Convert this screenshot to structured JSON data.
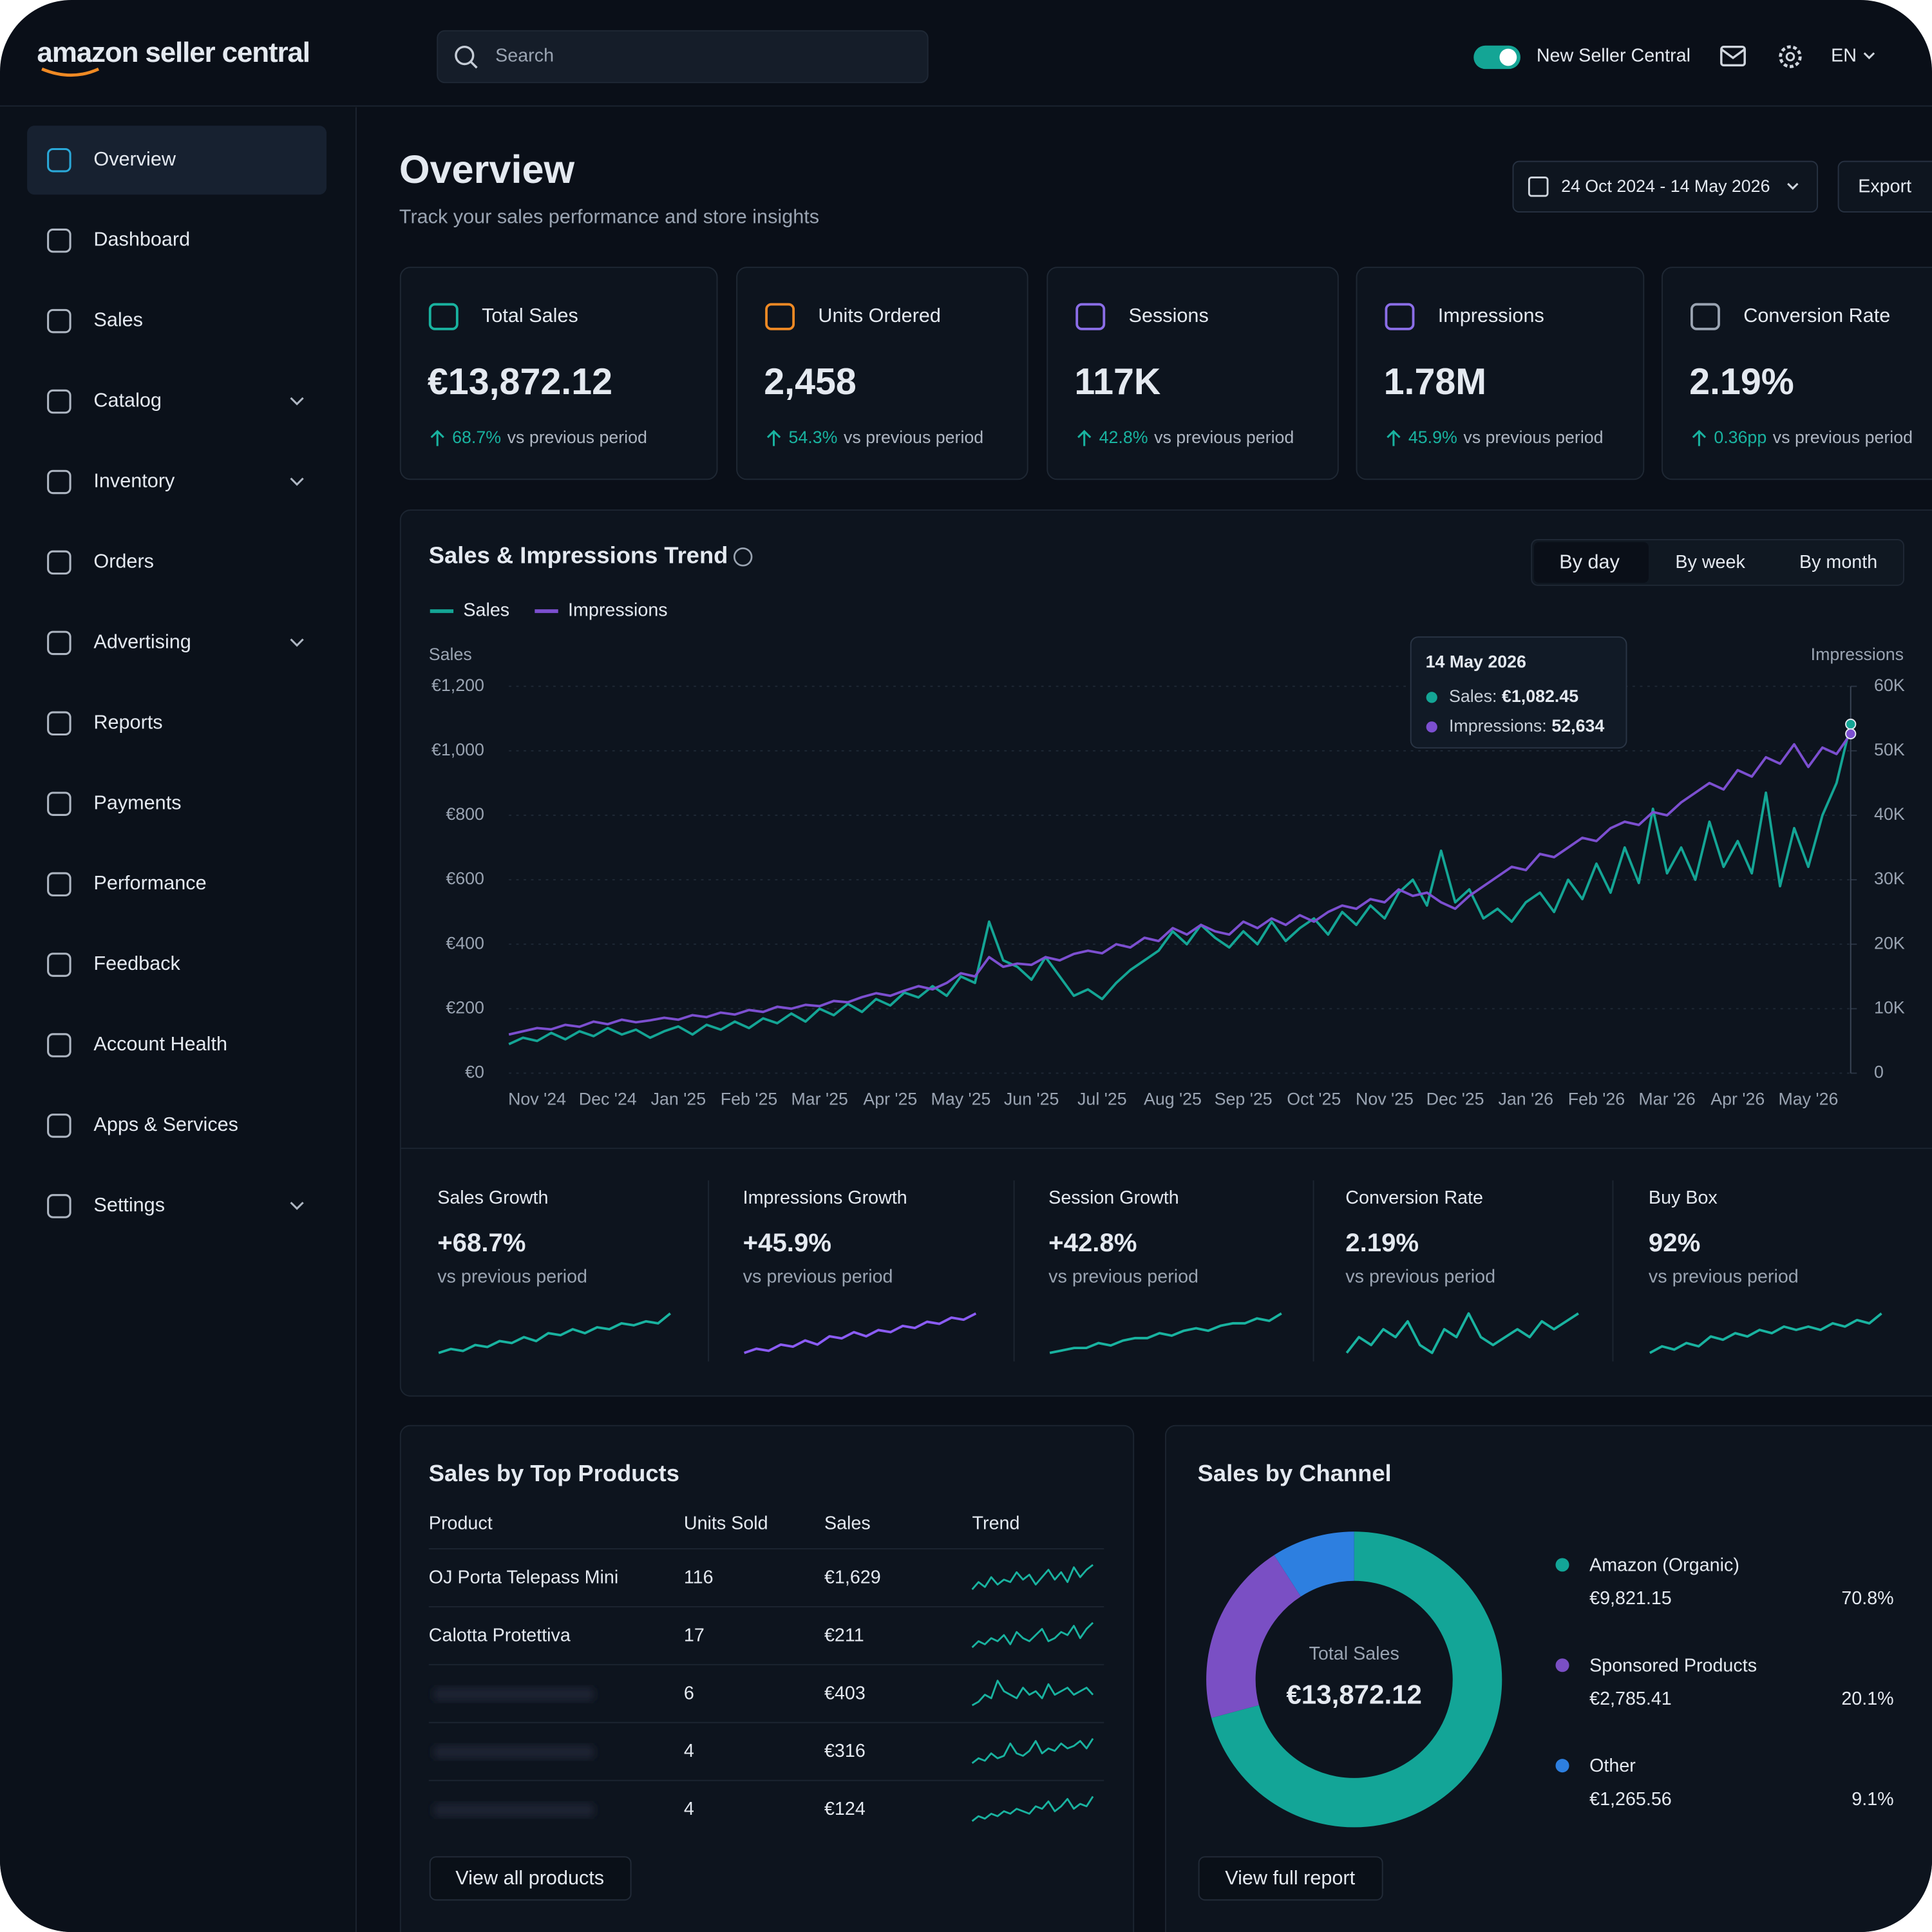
{
  "header": {
    "logo": "amazon seller central",
    "search_placeholder": "Search",
    "toggle_label": "New Seller Central",
    "language": "EN"
  },
  "nav": [
    {
      "label": "Overview",
      "active": true
    },
    {
      "label": "Dashboard"
    },
    {
      "label": "Sales"
    },
    {
      "label": "Catalog",
      "expandable": true
    },
    {
      "label": "Inventory",
      "expandable": true
    },
    {
      "label": "Orders"
    },
    {
      "label": "Advertising",
      "expandable": true
    },
    {
      "label": "Reports"
    },
    {
      "label": "Payments"
    },
    {
      "label": "Performance"
    },
    {
      "label": "Feedback"
    },
    {
      "label": "Account Health"
    },
    {
      "label": "Apps & Services"
    },
    {
      "label": "Settings",
      "expandable": true
    }
  ],
  "page": {
    "title": "Overview",
    "subtitle": "Track your sales performance and store insights",
    "date_range": "24 Oct 2024 - 14 May 2026",
    "export": "Export"
  },
  "kpis": [
    {
      "label": "Total Sales",
      "value": "€13,872.12",
      "change": "68.7%",
      "comparison": "vs previous period",
      "color": "#19b3a0"
    },
    {
      "label": "Units Ordered",
      "value": "2,458",
      "change": "54.3%",
      "comparison": "vs previous period",
      "color": "#f08a24"
    },
    {
      "label": "Sessions",
      "value": "117K",
      "change": "42.8%",
      "comparison": "vs previous period",
      "color": "#8b6ee8"
    },
    {
      "label": "Impressions",
      "value": "1.78M",
      "change": "45.9%",
      "comparison": "vs previous period",
      "color": "#8b6ee8"
    },
    {
      "label": "Conversion Rate",
      "value": "2.19%",
      "change": "0.36pp",
      "comparison": "vs previous period",
      "color": "#9aa4b2"
    }
  ],
  "chart_data": [
    {
      "type": "line",
      "title": "Sales & Impressions Trend",
      "periods": [
        "By day",
        "By week",
        "By month"
      ],
      "active_period": 0,
      "y_title": "Sales",
      "y2_title": "Impressions",
      "categories": [
        null,
        null,
        "Nov '24",
        null,
        null,
        null,
        null,
        "Dec '24",
        null,
        null,
        null,
        null,
        "Jan '25",
        null,
        null,
        null,
        null,
        "Feb '25",
        null,
        null,
        null,
        null,
        "Mar '25",
        null,
        null,
        null,
        null,
        "Apr '25",
        null,
        null,
        null,
        null,
        "May '25",
        null,
        null,
        null,
        null,
        "Jun '25",
        null,
        null,
        null,
        null,
        "Jul '25",
        null,
        null,
        null,
        null,
        "Aug '25",
        null,
        null,
        null,
        null,
        "Sep '25",
        null,
        null,
        null,
        null,
        "Oct '25",
        null,
        null,
        null,
        null,
        "Nov '25",
        null,
        null,
        null,
        null,
        "Dec '25",
        null,
        null,
        null,
        null,
        "Jan '26",
        null,
        null,
        null,
        null,
        "Feb '26",
        null,
        null,
        null,
        null,
        "Mar '26",
        null,
        null,
        null,
        null,
        "Apr '26",
        null,
        null,
        null,
        null,
        "May '26",
        null,
        null,
        null
      ],
      "series": [
        {
          "name": "Sales",
          "color": "#14a595",
          "values": [
            90,
            110,
            100,
            125,
            105,
            130,
            115,
            140,
            120,
            135,
            110,
            130,
            145,
            120,
            150,
            135,
            160,
            140,
            170,
            155,
            185,
            160,
            200,
            180,
            215,
            190,
            230,
            210,
            250,
            235,
            270,
            240,
            300,
            280,
            470,
            350,
            330,
            290,
            360,
            300,
            240,
            260,
            230,
            280,
            320,
            350,
            380,
            440,
            400,
            460,
            420,
            390,
            440,
            400,
            470,
            410,
            450,
            480,
            430,
            500,
            460,
            520,
            480,
            560,
            600,
            520,
            690,
            530,
            570,
            480,
            510,
            470,
            530,
            560,
            500,
            600,
            540,
            650,
            560,
            700,
            590,
            820,
            620,
            700,
            600,
            780,
            640,
            720,
            620,
            870,
            580,
            760,
            640,
            800,
            900,
            1082.45
          ]
        },
        {
          "name": "Impressions",
          "color": "#7c4fd0",
          "axis": "y2",
          "values": [
            6000,
            6500,
            7000,
            6800,
            7500,
            7200,
            8000,
            7600,
            8300,
            7900,
            8200,
            8600,
            8300,
            9000,
            8700,
            9400,
            9100,
            9800,
            9500,
            10300,
            10000,
            10600,
            10400,
            11200,
            11000,
            11800,
            12400,
            12000,
            12800,
            13500,
            13000,
            14000,
            15500,
            15000,
            18000,
            16500,
            17000,
            16800,
            18000,
            17500,
            18500,
            19000,
            18600,
            20000,
            19500,
            21000,
            20500,
            22500,
            21500,
            23000,
            22000,
            21500,
            23500,
            22500,
            24000,
            23000,
            24500,
            23500,
            25000,
            26000,
            25500,
            27000,
            26500,
            28500,
            27500,
            28000,
            26500,
            25500,
            27500,
            29000,
            30500,
            32000,
            31500,
            34000,
            33500,
            35000,
            36500,
            36000,
            38000,
            39000,
            38500,
            40500,
            40000,
            42000,
            43500,
            45000,
            44000,
            47000,
            46000,
            49000,
            48000,
            51000,
            47500,
            50500,
            49500,
            52634
          ]
        }
      ],
      "ylim": [
        0,
        1200
      ],
      "yticks": [
        {
          "value": 0,
          "label": "€0"
        },
        {
          "value": 200,
          "label": "€200"
        },
        {
          "value": 400,
          "label": "€400"
        },
        {
          "value": 600,
          "label": "€600"
        },
        {
          "value": 800,
          "label": "€800"
        },
        {
          "value": 1000,
          "label": "€1,000"
        },
        {
          "value": 1200,
          "label": "€1,200"
        }
      ],
      "y2lim": [
        0,
        60000
      ],
      "y2ticks": [
        0,
        {
          "value": 10000,
          "label": "10K"
        },
        {
          "value": 20000,
          "label": "20K"
        },
        {
          "value": 30000,
          "label": "30K"
        },
        {
          "value": 40000,
          "label": "40K"
        },
        {
          "value": 50000,
          "label": "50K"
        },
        {
          "value": 60000,
          "label": "60K"
        }
      ],
      "grid": true,
      "tooltip": {
        "date": "14 May 2026",
        "lines": [
          {
            "label": "Sales:",
            "value": "€1,082.45"
          },
          {
            "label": "Impressions:",
            "value": "52,634"
          }
        ]
      }
    },
    {
      "type": "pie",
      "title": "Sales by Channel",
      "center_label": "Total Sales",
      "center_value": "€13,872.12",
      "categories": [
        "Amazon (Organic)",
        "Sponsored Products",
        "Other"
      ],
      "colors": [
        "#13a597",
        "#7a4fc4",
        "#2d7fe0"
      ],
      "values": [
        70.8,
        20.1,
        9.1
      ],
      "value_labels": [
        "70.8%",
        "20.1%",
        "9.1%"
      ],
      "amounts": [
        "€9,821.15",
        "€2,785.41",
        "€1,265.56"
      ],
      "button": "View full report"
    }
  ],
  "growth": [
    {
      "label": "Sales Growth",
      "value": "+68.7%",
      "note": "vs previous period",
      "color": "#19b3a0",
      "trend": [
        10,
        12,
        11,
        14,
        13,
        16,
        15,
        18,
        16,
        20,
        19,
        22,
        20,
        23,
        22,
        25,
        24,
        26,
        25,
        30
      ]
    },
    {
      "label": "Impressions Growth",
      "value": "+45.9%",
      "note": "vs previous period",
      "color": "#8b5cf6",
      "trend": [
        8,
        10,
        9,
        12,
        11,
        14,
        12,
        16,
        15,
        18,
        16,
        19,
        18,
        21,
        20,
        23,
        22,
        25,
        24,
        27
      ]
    },
    {
      "label": "Session Growth",
      "value": "+42.8%",
      "note": "vs previous period",
      "color": "#19b3a0",
      "trend": [
        10,
        11,
        12,
        12,
        14,
        13,
        15,
        16,
        16,
        18,
        17,
        19,
        20,
        19,
        21,
        22,
        22,
        24,
        23,
        26
      ]
    },
    {
      "label": "Conversion Rate",
      "value": "2.19%",
      "note": "vs previous period",
      "color": "#19b3a0",
      "trend": [
        20,
        22,
        21,
        23,
        22,
        24,
        21,
        20,
        23,
        22,
        25,
        22,
        21,
        22,
        23,
        22,
        24,
        23,
        24,
        25
      ]
    },
    {
      "label": "Buy Box",
      "value": "92%",
      "note": "vs previous period",
      "color": "#19b3a0",
      "trend": [
        10,
        12,
        11,
        13,
        12,
        15,
        14,
        16,
        15,
        17,
        16,
        18,
        17,
        18,
        17,
        19,
        18,
        20,
        19,
        22
      ]
    }
  ],
  "products": {
    "title": "Sales by Top Products",
    "headers": [
      "Product",
      "Units Sold",
      "Sales",
      "Trend"
    ],
    "button": "View all products",
    "rows": [
      {
        "name": "OJ Porta Telepass Mini",
        "units": 116,
        "sales": "€1,629",
        "trend": [
          5,
          8,
          6,
          10,
          7,
          9,
          8,
          12,
          9,
          11,
          7,
          10,
          13,
          9,
          12,
          8,
          14,
          10,
          13,
          15
        ]
      },
      {
        "name": "Calotta Protettiva",
        "units": 17,
        "sales": "€211",
        "trend": [
          6,
          8,
          7,
          9,
          8,
          10,
          7,
          11,
          9,
          8,
          10,
          12,
          8,
          9,
          11,
          10,
          13,
          9,
          12,
          14
        ]
      },
      {
        "name": null,
        "units": 6,
        "sales": "€403",
        "trend": [
          5,
          6,
          8,
          7,
          12,
          9,
          8,
          7,
          10,
          8,
          9,
          7,
          11,
          8,
          9,
          10,
          8,
          9,
          10,
          8
        ]
      },
      {
        "name": null,
        "units": 4,
        "sales": "€316",
        "trend": [
          4,
          6,
          5,
          8,
          6,
          7,
          12,
          8,
          7,
          9,
          13,
          8,
          10,
          9,
          12,
          10,
          11,
          13,
          10,
          14
        ]
      },
      {
        "name": null,
        "units": 4,
        "sales": "€124",
        "trend": [
          3,
          5,
          4,
          6,
          5,
          7,
          6,
          8,
          7,
          6,
          9,
          8,
          11,
          7,
          9,
          12,
          8,
          10,
          9,
          13
        ]
      }
    ]
  }
}
